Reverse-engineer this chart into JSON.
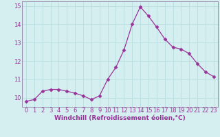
{
  "x": [
    0,
    1,
    2,
    3,
    4,
    5,
    6,
    7,
    8,
    9,
    10,
    11,
    12,
    13,
    14,
    15,
    16,
    17,
    18,
    19,
    20,
    21,
    22,
    23
  ],
  "y": [
    9.8,
    9.9,
    10.35,
    10.45,
    10.45,
    10.35,
    10.25,
    10.1,
    9.9,
    10.1,
    11.0,
    11.65,
    12.6,
    14.0,
    14.95,
    14.45,
    13.85,
    13.2,
    12.75,
    12.65,
    12.4,
    11.85,
    11.4,
    11.15
  ],
  "line_color": "#993399",
  "marker": "D",
  "marker_size": 2.5,
  "background_color": "#d5eef0",
  "grid_color": "#b8dde0",
  "xlabel": "Windchill (Refroidissement éolien,°C)",
  "ylim": [
    9.5,
    15.25
  ],
  "xlim": [
    -0.5,
    23.5
  ],
  "yticks": [
    10,
    11,
    12,
    13,
    14,
    15
  ],
  "ytick_labels": [
    "10",
    "11",
    "12",
    "13",
    "14",
    "15"
  ],
  "xticks": [
    0,
    1,
    2,
    3,
    4,
    5,
    6,
    7,
    8,
    9,
    10,
    11,
    12,
    13,
    14,
    15,
    16,
    17,
    18,
    19,
    20,
    21,
    22,
    23
  ],
  "xlabel_fontsize": 6.5,
  "tick_fontsize": 6.0,
  "spine_color": "#9988aa",
  "tick_color": "#993399",
  "label_color": "#993399"
}
